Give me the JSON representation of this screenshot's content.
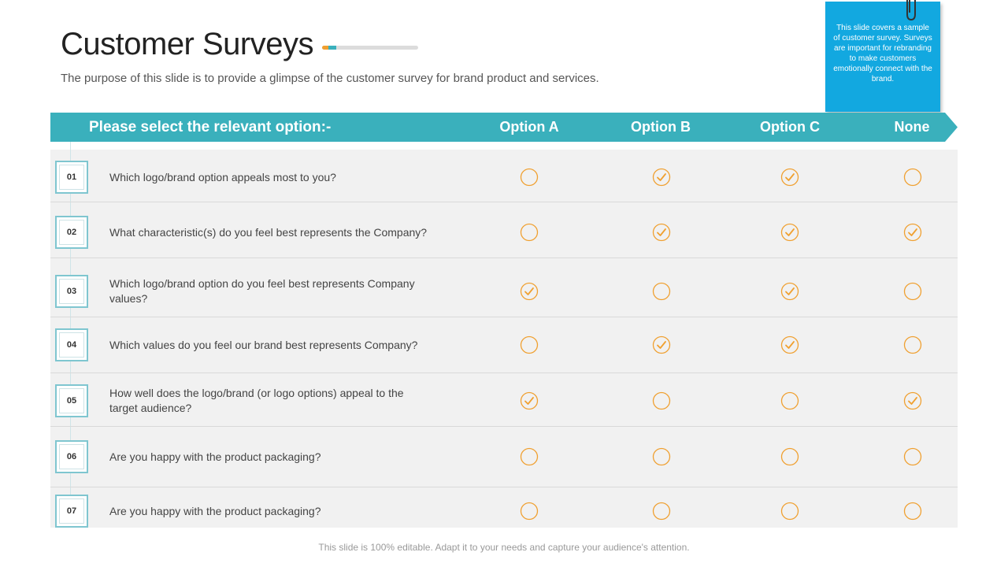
{
  "title": "Customer Surveys",
  "subtitle": "The purpose of this slide is to provide a glimpse of the customer survey for brand product and services.",
  "note": "This slide covers a sample of customer survey. Surveys are important for rebranding to make customers emotionally connect with the brand.",
  "header": {
    "label": "Please select the relevant option:-",
    "options": [
      "Option A",
      "Option B",
      "Option C",
      "None"
    ]
  },
  "rows": [
    {
      "num": "01",
      "question": "Which logo/brand option appeals most to you?",
      "checks": [
        false,
        true,
        true,
        false
      ]
    },
    {
      "num": "02",
      "question": "What characteristic(s)  do you feel best represents the Company?",
      "checks": [
        false,
        true,
        true,
        true
      ]
    },
    {
      "num": "03",
      "question": "Which logo/brand option do you feel best represents Company values?",
      "checks": [
        true,
        false,
        true,
        false
      ]
    },
    {
      "num": "04",
      "question": "Which values do you feel our brand best represents Company?",
      "checks": [
        false,
        true,
        true,
        false
      ]
    },
    {
      "num": "05",
      "question": "How well does the logo/brand (or logo options) appeal to the target audience?",
      "checks": [
        true,
        false,
        false,
        true
      ]
    },
    {
      "num": "06",
      "question": "Are you happy with the product packaging?",
      "checks": [
        false,
        false,
        false,
        false
      ]
    },
    {
      "num": "07",
      "question": "Are you happy with the product packaging?",
      "checks": [
        false,
        false,
        false,
        false
      ]
    }
  ],
  "footer": "This slide is 100% editable. Adapt it to your needs and capture your audience's attention.",
  "colors": {
    "accent": "#3ab0bc",
    "check": "#f0a030",
    "note": "#12a8e0"
  }
}
